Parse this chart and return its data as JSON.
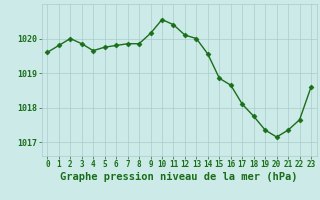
{
  "x": [
    0,
    1,
    2,
    3,
    4,
    5,
    6,
    7,
    8,
    9,
    10,
    11,
    12,
    13,
    14,
    15,
    16,
    17,
    18,
    19,
    20,
    21,
    22,
    23
  ],
  "y": [
    1019.6,
    1019.8,
    1020.0,
    1019.85,
    1019.65,
    1019.75,
    1019.8,
    1019.85,
    1019.85,
    1020.15,
    1020.55,
    1020.4,
    1020.1,
    1020.0,
    1019.55,
    1018.85,
    1018.65,
    1018.1,
    1017.75,
    1017.35,
    1017.15,
    1017.35,
    1017.65,
    1018.6
  ],
  "line_color": "#1a6e1a",
  "marker": "D",
  "marker_size": 2.5,
  "bg_color": "#cceae7",
  "grid_color": "#aacccc",
  "xlabel": "Graphe pression niveau de la mer (hPa)",
  "xlabel_color": "#1a6e1a",
  "tick_color": "#1a6e1a",
  "yticks": [
    1017,
    1018,
    1019,
    1020
  ],
  "ylim": [
    1016.6,
    1021.0
  ],
  "xlim": [
    -0.5,
    23.5
  ],
  "tick_fontsize": 5.5,
  "label_fontsize": 7.5,
  "linewidth": 1.0
}
